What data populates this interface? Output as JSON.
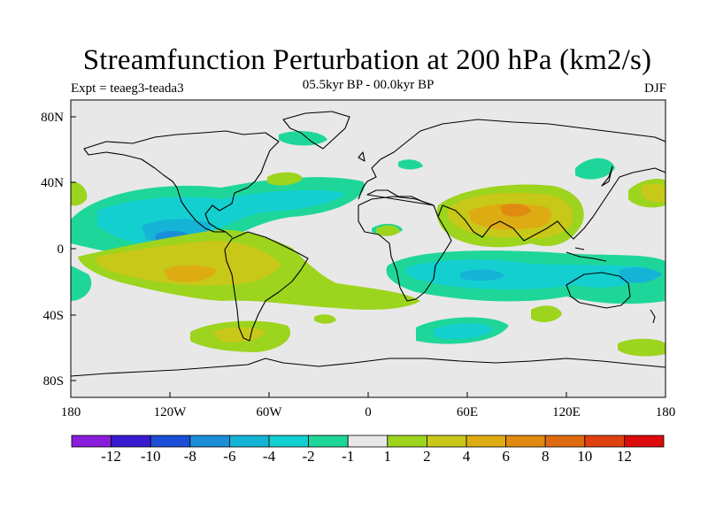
{
  "title": "Streamfunction Perturbation at 200 hPa (km2/s)",
  "left_label": "Expt = teaeg3-teada3",
  "center_label": "05.5kyr BP - 00.0kyr BP",
  "right_label": "DJF",
  "map": {
    "lat_ticks": [
      "80N",
      "40N",
      "0",
      "40S",
      "80S"
    ],
    "lon_ticks": [
      "180",
      "120W",
      "60W",
      "0",
      "60E",
      "120E",
      "180"
    ]
  },
  "colorbar": {
    "colors": [
      "#8a1ddb",
      "#3a1ad1",
      "#1b4ed6",
      "#1a8ed9",
      "#15b4d6",
      "#14cfd0",
      "#1fd69a",
      "#e8e8e8",
      "#9cd41e",
      "#c8c818",
      "#dcac12",
      "#e08a12",
      "#e06a10",
      "#e04010",
      "#dc0b0b"
    ],
    "labels": [
      "-12",
      "-10",
      "-8",
      "-6",
      "-4",
      "-2",
      "-1",
      "1",
      "2",
      "4",
      "6",
      "8",
      "10",
      "12"
    ]
  }
}
